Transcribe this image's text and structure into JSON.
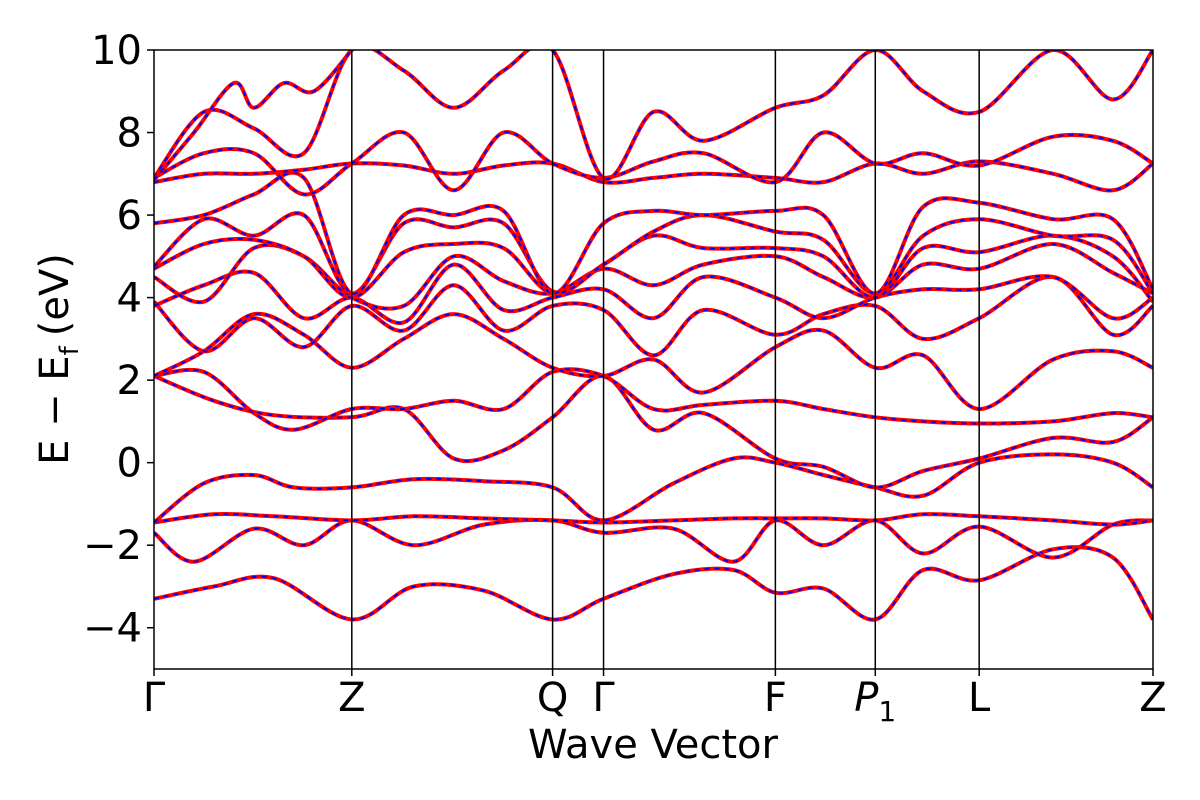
{
  "chart_data": {
    "type": "line",
    "title": "",
    "xlabel": "Wave Vector",
    "ylabel": "E − E",
    "ylabel_subscript": "f",
    "ylabel_unit": "(eV)",
    "ylim": [
      -5,
      10
    ],
    "yticks": [
      -4,
      -2,
      0,
      2,
      4,
      6,
      8,
      10
    ],
    "ytick_labels": [
      "−4",
      "−2",
      "0",
      "2",
      "4",
      "6",
      "8",
      "10"
    ],
    "high_symmetry_points": [
      {
        "label": "Γ",
        "x": 0.0
      },
      {
        "label": "Z",
        "x": 0.198
      },
      {
        "label": "Q",
        "x": 0.399
      },
      {
        "label": "Γ",
        "x": 0.45
      },
      {
        "label": "F",
        "x": 0.622
      },
      {
        "label": "P",
        "subscript": "1",
        "x": 0.722
      },
      {
        "label": "L",
        "x": 0.826
      },
      {
        "label": "Z",
        "x": 1.0
      }
    ],
    "grid": false,
    "line_styles": [
      {
        "name": "",
        "color": "#ff0000",
        "style": "solid"
      },
      {
        "name": "",
        "color": "#0000ff",
        "style": "dashed"
      }
    ],
    "bands": [
      {
        "x": [
          0,
          0.06,
          0.12,
          0.198,
          0.26,
          0.33,
          0.399,
          0.45,
          0.52,
          0.58,
          0.622,
          0.67,
          0.722,
          0.77,
          0.826,
          0.9,
          0.96,
          1.0
        ],
        "y": [
          -3.3,
          -3.0,
          -2.8,
          -3.8,
          -3.0,
          -3.1,
          -3.8,
          -3.3,
          -2.7,
          -2.6,
          -3.15,
          -3.05,
          -3.8,
          -2.6,
          -2.85,
          -2.1,
          -2.3,
          -3.8
        ]
      },
      {
        "x": [
          0,
          0.04,
          0.1,
          0.15,
          0.198,
          0.26,
          0.33,
          0.399,
          0.45,
          0.52,
          0.58,
          0.622,
          0.67,
          0.722,
          0.77,
          0.826,
          0.9,
          0.96,
          1.0
        ],
        "y": [
          -1.7,
          -2.4,
          -1.6,
          -2.0,
          -1.4,
          -2.0,
          -1.5,
          -1.4,
          -1.7,
          -1.6,
          -2.4,
          -1.4,
          -2.0,
          -1.4,
          -2.2,
          -1.55,
          -2.3,
          -1.5,
          -1.4
        ]
      },
      {
        "x": [
          0,
          0.06,
          0.12,
          0.198,
          0.26,
          0.33,
          0.399,
          0.45,
          0.52,
          0.58,
          0.622,
          0.67,
          0.722,
          0.77,
          0.826,
          0.9,
          0.96,
          1.0
        ],
        "y": [
          -1.45,
          -1.25,
          -1.3,
          -1.4,
          -1.3,
          -1.35,
          -1.4,
          -1.45,
          -1.4,
          -1.35,
          -1.35,
          -1.35,
          -1.4,
          -1.25,
          -1.3,
          -1.4,
          -1.5,
          -1.4
        ]
      },
      {
        "x": [
          0,
          0.05,
          0.1,
          0.14,
          0.198,
          0.26,
          0.33,
          0.399,
          0.45,
          0.52,
          0.58,
          0.622,
          0.67,
          0.722,
          0.77,
          0.826,
          0.9,
          0.96,
          1.0
        ],
        "y": [
          -1.45,
          -0.5,
          -0.3,
          -0.6,
          -0.6,
          -0.4,
          -0.45,
          -0.6,
          -1.4,
          -0.5,
          0.1,
          0.0,
          -0.3,
          -0.6,
          -0.8,
          0.0,
          0.2,
          0.0,
          -0.6
        ]
      },
      {
        "x": [
          0,
          0.06,
          0.12,
          0.198,
          0.25,
          0.3,
          0.35,
          0.399,
          0.45,
          0.5,
          0.55,
          0.622,
          0.67,
          0.722,
          0.77,
          0.826,
          0.9,
          0.96,
          1.0
        ],
        "y": [
          2.1,
          1.5,
          1.15,
          1.1,
          1.3,
          0.1,
          0.3,
          1.1,
          2.1,
          0.8,
          1.2,
          0.1,
          -0.1,
          -0.6,
          -0.2,
          0.1,
          0.6,
          0.5,
          1.1
        ]
      },
      {
        "x": [
          0,
          0.05,
          0.1,
          0.14,
          0.198,
          0.25,
          0.3,
          0.35,
          0.399,
          0.45,
          0.5,
          0.55,
          0.622,
          0.67,
          0.722,
          0.77,
          0.826,
          0.9,
          0.96,
          1.0
        ],
        "y": [
          2.1,
          2.2,
          1.2,
          0.8,
          1.3,
          1.3,
          1.5,
          1.3,
          2.2,
          2.1,
          1.3,
          1.4,
          1.5,
          1.3,
          1.1,
          1.0,
          0.95,
          1.0,
          1.2,
          1.1
        ]
      },
      {
        "x": [
          0,
          0.05,
          0.1,
          0.15,
          0.198,
          0.25,
          0.3,
          0.35,
          0.399,
          0.45,
          0.5,
          0.55,
          0.622,
          0.67,
          0.722,
          0.77,
          0.826,
          0.9,
          0.96,
          1.0
        ],
        "y": [
          2.1,
          2.7,
          3.6,
          3.1,
          2.3,
          3.0,
          3.6,
          3.0,
          2.3,
          2.1,
          2.5,
          1.7,
          2.8,
          3.2,
          2.3,
          2.6,
          1.3,
          2.5,
          2.7,
          2.3
        ]
      },
      {
        "x": [
          0,
          0.05,
          0.1,
          0.15,
          0.198,
          0.25,
          0.3,
          0.35,
          0.399,
          0.45,
          0.5,
          0.55,
          0.622,
          0.67,
          0.722,
          0.77,
          0.826,
          0.9,
          0.96,
          1.0
        ],
        "y": [
          3.9,
          2.7,
          3.5,
          2.8,
          3.8,
          3.2,
          4.3,
          3.2,
          3.8,
          3.7,
          2.6,
          3.7,
          3.1,
          3.6,
          3.8,
          3.0,
          3.5,
          4.5,
          3.1,
          3.8
        ]
      },
      {
        "x": [
          0,
          0.05,
          0.1,
          0.15,
          0.198,
          0.25,
          0.3,
          0.35,
          0.399,
          0.45,
          0.5,
          0.55,
          0.622,
          0.67,
          0.722,
          0.77,
          0.826,
          0.9,
          0.96,
          1.0
        ],
        "y": [
          3.8,
          4.3,
          4.6,
          3.5,
          4.0,
          3.4,
          4.8,
          3.7,
          4.0,
          4.2,
          3.5,
          4.5,
          4.0,
          3.5,
          4.0,
          4.2,
          4.2,
          4.5,
          3.5,
          4.0
        ]
      },
      {
        "x": [
          0,
          0.05,
          0.1,
          0.15,
          0.198,
          0.25,
          0.3,
          0.35,
          0.399,
          0.45,
          0.5,
          0.55,
          0.622,
          0.67,
          0.722,
          0.77,
          0.826,
          0.9,
          0.96,
          1.0
        ],
        "y": [
          4.5,
          3.9,
          5.2,
          5.0,
          4.0,
          3.8,
          5.0,
          4.4,
          4.1,
          4.7,
          4.3,
          4.8,
          5.0,
          4.5,
          4.0,
          4.8,
          4.7,
          5.3,
          4.6,
          4.1
        ]
      },
      {
        "x": [
          0,
          0.05,
          0.1,
          0.15,
          0.198,
          0.25,
          0.3,
          0.35,
          0.399,
          0.45,
          0.5,
          0.55,
          0.622,
          0.67,
          0.722,
          0.77,
          0.826,
          0.9,
          0.96,
          1.0
        ],
        "y": [
          4.7,
          5.3,
          5.4,
          5.0,
          4.0,
          5.1,
          5.3,
          5.2,
          4.1,
          4.8,
          5.5,
          5.2,
          5.2,
          5.0,
          4.0,
          5.2,
          5.1,
          5.5,
          5.0,
          3.9
        ]
      },
      {
        "x": [
          0,
          0.05,
          0.1,
          0.15,
          0.198,
          0.25,
          0.3,
          0.35,
          0.399,
          0.45,
          0.5,
          0.55,
          0.622,
          0.67,
          0.722,
          0.77,
          0.826,
          0.9,
          0.96,
          1.0
        ],
        "y": [
          4.75,
          5.9,
          5.5,
          6.0,
          4.1,
          5.8,
          5.7,
          5.8,
          4.15,
          4.8,
          5.6,
          6.0,
          5.6,
          5.4,
          4.1,
          5.5,
          5.9,
          5.5,
          5.4,
          4.1
        ]
      },
      {
        "x": [
          0,
          0.05,
          0.1,
          0.15,
          0.198,
          0.25,
          0.3,
          0.35,
          0.399,
          0.45,
          0.5,
          0.55,
          0.622,
          0.67,
          0.722,
          0.77,
          0.826,
          0.9,
          0.96,
          1.0
        ],
        "y": [
          5.8,
          6.0,
          6.5,
          6.9,
          4.1,
          6.0,
          6.0,
          6.1,
          4.1,
          5.8,
          6.1,
          6.0,
          6.1,
          6.0,
          4.1,
          6.2,
          6.3,
          5.9,
          5.9,
          4.2
        ]
      },
      {
        "x": [
          0,
          0.05,
          0.1,
          0.15,
          0.198,
          0.25,
          0.3,
          0.35,
          0.399,
          0.45,
          0.5,
          0.55,
          0.622,
          0.67,
          0.722,
          0.77,
          0.826,
          0.9,
          0.96,
          1.0
        ],
        "y": [
          6.8,
          7.0,
          7.0,
          7.1,
          7.25,
          7.2,
          7.0,
          7.2,
          7.25,
          6.8,
          6.9,
          7.0,
          6.9,
          6.8,
          7.25,
          7.0,
          7.3,
          7.0,
          6.6,
          7.25
        ]
      },
      {
        "x": [
          0,
          0.05,
          0.1,
          0.15,
          0.198,
          0.25,
          0.3,
          0.35,
          0.399,
          0.45,
          0.5,
          0.55,
          0.622,
          0.67,
          0.722,
          0.77,
          0.826,
          0.9,
          0.96,
          1.0
        ],
        "y": [
          6.9,
          7.5,
          7.5,
          6.5,
          7.25,
          8.0,
          6.6,
          8.0,
          7.25,
          6.9,
          7.3,
          7.5,
          6.8,
          8.0,
          7.25,
          7.5,
          7.2,
          7.9,
          7.8,
          7.25
        ]
      },
      {
        "x": [
          0,
          0.05,
          0.1,
          0.15,
          0.198,
          0.25,
          0.3,
          0.35,
          0.399,
          0.45,
          0.5,
          0.55,
          0.622,
          0.67,
          0.722,
          0.77,
          0.826,
          0.9,
          0.96,
          1.0
        ],
        "y": [
          6.9,
          8.5,
          8.1,
          7.5,
          10.0,
          9.5,
          8.6,
          9.5,
          10.0,
          6.9,
          8.5,
          7.8,
          8.6,
          8.9,
          10.0,
          9.0,
          8.5,
          10.0,
          8.8,
          10.0
        ]
      },
      {
        "x": [
          0,
          0.04,
          0.08,
          0.1,
          0.13,
          0.16,
          0.198
        ],
        "y": [
          6.85,
          8.0,
          9.2,
          8.6,
          9.2,
          9.0,
          10.0
        ]
      }
    ]
  }
}
